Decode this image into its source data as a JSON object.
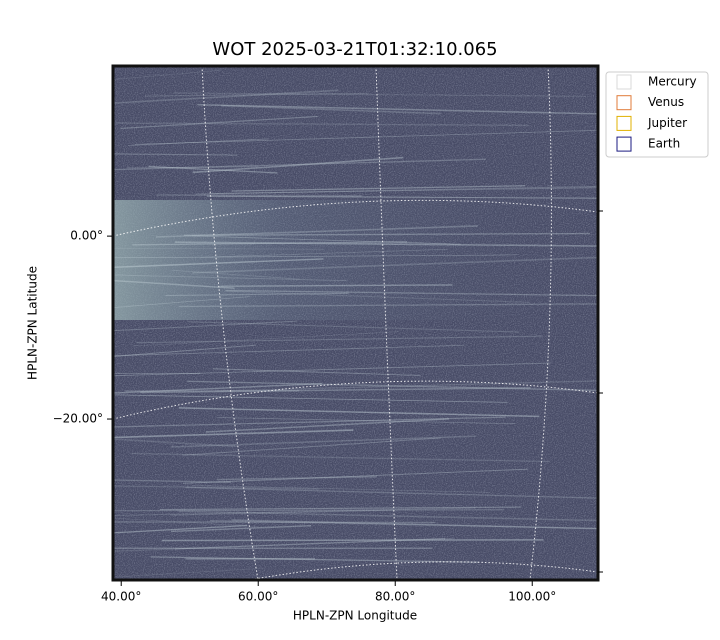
{
  "chart_data": {
    "type": "image",
    "title": "WOT 2025-03-21T01:32:10.065",
    "xlabel": "HPLN-ZPN Longitude",
    "ylabel": "HPLN-ZPN Latitude",
    "xlim": [
      38.8,
      109.6
    ],
    "ylim": [
      -37.6,
      18.6
    ],
    "xticks": [
      {
        "value": 40,
        "label": "40.00°"
      },
      {
        "value": 60,
        "label": "60.00°"
      },
      {
        "value": 80,
        "label": "80.00°"
      },
      {
        "value": 100,
        "label": "100.00°"
      }
    ],
    "yticks": [
      {
        "value": 0,
        "label": "0.00°"
      },
      {
        "value": -20,
        "label": "−20.00°"
      }
    ],
    "grid": true,
    "legend": "outside upper right",
    "series": [
      {
        "name": "Mercury",
        "color": "#d9d9d9"
      },
      {
        "name": "Venus",
        "color": "#e07b39"
      },
      {
        "name": "Jupiter",
        "color": "#e0b000"
      },
      {
        "name": "Earth",
        "color": "#1a1a80"
      }
    ]
  }
}
